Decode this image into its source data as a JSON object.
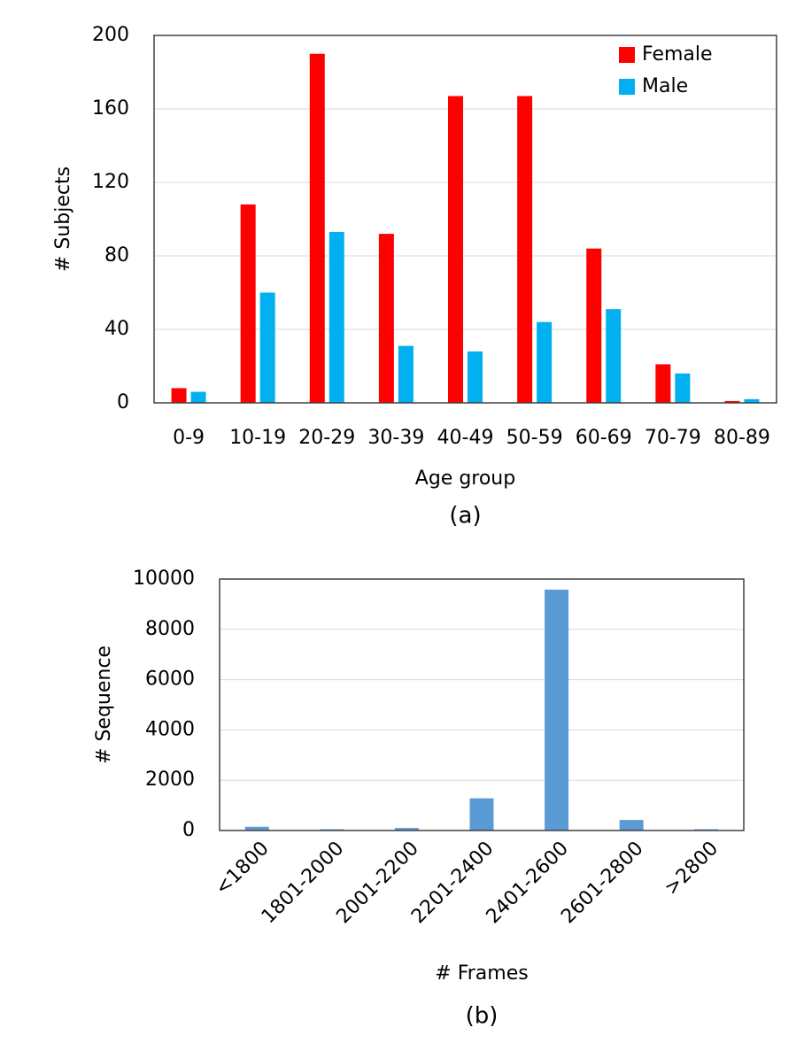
{
  "chart_data": [
    {
      "type": "bar",
      "caption": "(a)",
      "x_label": "Age group",
      "y_label": "# Subjects",
      "categories": [
        "0-9",
        "10-19",
        "20-29",
        "30-39",
        "40-49",
        "50-59",
        "60-69",
        "70-79",
        "80-89"
      ],
      "series": [
        {
          "name": "Female",
          "color": "#ff0000",
          "values": [
            8,
            108,
            190,
            92,
            167,
            167,
            84,
            21,
            1
          ]
        },
        {
          "name": "Male",
          "color": "#00b0f0",
          "values": [
            6,
            60,
            93,
            31,
            28,
            44,
            51,
            16,
            2
          ]
        }
      ],
      "ylim": [
        0,
        200
      ],
      "yticks": [
        0,
        40,
        80,
        120,
        160,
        200
      ],
      "grid": true,
      "legend": "upper right"
    },
    {
      "type": "bar",
      "caption": "(b)",
      "x_label": "# Frames",
      "y_label": "# Sequence",
      "categories": [
        "<1800",
        "1801-2000",
        "2001-2200",
        "2201-2400",
        "2401-2600",
        "2601-2800",
        ">2800"
      ],
      "series": [
        {
          "color": "#5b9bd5",
          "values": [
            150,
            50,
            100,
            1280,
            9580,
            420,
            50
          ]
        }
      ],
      "ylim": [
        0,
        10000
      ],
      "yticks": [
        0,
        2000,
        4000,
        6000,
        8000,
        10000
      ],
      "grid": true,
      "rotate_x_labels": true
    }
  ]
}
